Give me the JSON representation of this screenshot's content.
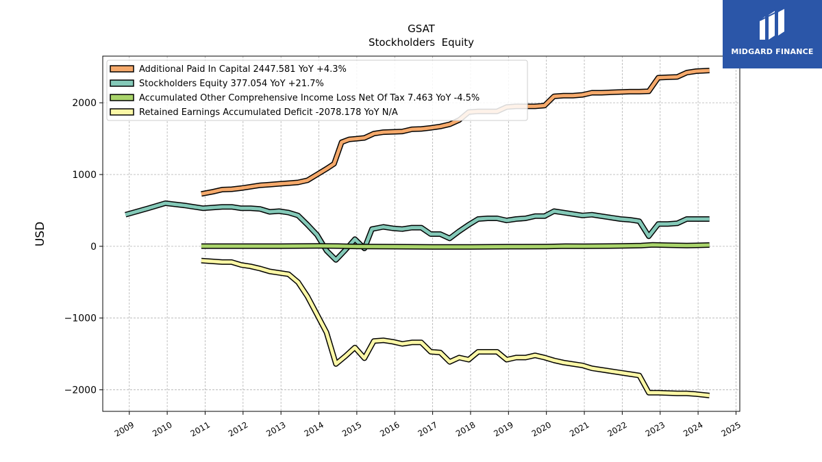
{
  "chart_data": {
    "type": "line",
    "title": "GSAT",
    "subtitle": "Stockholders  Equity",
    "ylabel": "USD",
    "xlabel": "",
    "xlim": [
      2008.3,
      2025.1
    ],
    "ylim": [
      -2300,
      2650
    ],
    "x_ticks": [
      2009,
      2010,
      2011,
      2012,
      2013,
      2014,
      2015,
      2016,
      2017,
      2018,
      2019,
      2020,
      2021,
      2022,
      2023,
      2024,
      2025
    ],
    "x_tick_labels": [
      "2009",
      "2010",
      "2011",
      "2012",
      "2013",
      "2014",
      "2015",
      "2016",
      "2017",
      "2018",
      "2019",
      "2020",
      "2021",
      "2022",
      "2023",
      "2024",
      "2025"
    ],
    "y_ticks": [
      -2000,
      -1000,
      0,
      1000,
      2000
    ],
    "y_tick_labels": [
      "−2000",
      "−1000",
      "0",
      "1000",
      "2000"
    ],
    "grid": true,
    "legend_position": "top-left",
    "series": [
      {
        "name": "Additional Paid In Capital",
        "legend": "Additional Paid In Capital  2447.581 YoY +4.3%",
        "color": "#f5a96b",
        "points": [
          [
            2010.9,
            730
          ],
          [
            2011.2,
            760
          ],
          [
            2011.45,
            790
          ],
          [
            2011.7,
            795
          ],
          [
            2011.95,
            810
          ],
          [
            2012.2,
            830
          ],
          [
            2012.45,
            850
          ],
          [
            2012.7,
            860
          ],
          [
            2012.95,
            870
          ],
          [
            2013.2,
            880
          ],
          [
            2013.45,
            890
          ],
          [
            2013.7,
            920
          ],
          [
            2013.95,
            1000
          ],
          [
            2014.2,
            1080
          ],
          [
            2014.4,
            1150
          ],
          [
            2014.6,
            1450
          ],
          [
            2014.8,
            1490
          ],
          [
            2015.0,
            1500
          ],
          [
            2015.2,
            1510
          ],
          [
            2015.45,
            1570
          ],
          [
            2015.7,
            1590
          ],
          [
            2015.95,
            1595
          ],
          [
            2016.2,
            1600
          ],
          [
            2016.45,
            1630
          ],
          [
            2016.7,
            1635
          ],
          [
            2016.95,
            1650
          ],
          [
            2017.2,
            1670
          ],
          [
            2017.45,
            1700
          ],
          [
            2017.7,
            1760
          ],
          [
            2017.95,
            1870
          ],
          [
            2018.2,
            1880
          ],
          [
            2018.45,
            1880
          ],
          [
            2018.7,
            1880
          ],
          [
            2018.95,
            1940
          ],
          [
            2019.2,
            1950
          ],
          [
            2019.45,
            1950
          ],
          [
            2019.7,
            1950
          ],
          [
            2019.95,
            1960
          ],
          [
            2020.2,
            2090
          ],
          [
            2020.45,
            2100
          ],
          [
            2020.7,
            2100
          ],
          [
            2020.95,
            2110
          ],
          [
            2021.2,
            2140
          ],
          [
            2021.45,
            2140
          ],
          [
            2021.7,
            2145
          ],
          [
            2021.95,
            2150
          ],
          [
            2022.2,
            2155
          ],
          [
            2022.45,
            2155
          ],
          [
            2022.7,
            2160
          ],
          [
            2022.95,
            2350
          ],
          [
            2023.2,
            2355
          ],
          [
            2023.45,
            2360
          ],
          [
            2023.7,
            2420
          ],
          [
            2023.95,
            2440
          ],
          [
            2024.3,
            2450
          ]
        ]
      },
      {
        "name": "Stockholders Equity",
        "legend": "Stockholders Equity  377.054 YoY +21.7%",
        "color": "#84c9b8",
        "points": [
          [
            2008.9,
            440
          ],
          [
            2009.5,
            530
          ],
          [
            2009.95,
            600
          ],
          [
            2010.45,
            570
          ],
          [
            2010.95,
            530
          ],
          [
            2011.45,
            550
          ],
          [
            2011.7,
            550
          ],
          [
            2011.95,
            530
          ],
          [
            2012.2,
            530
          ],
          [
            2012.45,
            520
          ],
          [
            2012.7,
            480
          ],
          [
            2012.95,
            490
          ],
          [
            2013.2,
            470
          ],
          [
            2013.45,
            430
          ],
          [
            2013.7,
            300
          ],
          [
            2013.95,
            160
          ],
          [
            2014.2,
            -60
          ],
          [
            2014.45,
            -190
          ],
          [
            2014.7,
            -50
          ],
          [
            2014.95,
            100
          ],
          [
            2015.2,
            -30
          ],
          [
            2015.4,
            240
          ],
          [
            2015.7,
            270
          ],
          [
            2015.95,
            250
          ],
          [
            2016.2,
            240
          ],
          [
            2016.45,
            260
          ],
          [
            2016.7,
            260
          ],
          [
            2016.95,
            170
          ],
          [
            2017.2,
            170
          ],
          [
            2017.45,
            110
          ],
          [
            2017.7,
            210
          ],
          [
            2017.95,
            300
          ],
          [
            2018.2,
            380
          ],
          [
            2018.45,
            390
          ],
          [
            2018.7,
            390
          ],
          [
            2018.95,
            360
          ],
          [
            2019.2,
            380
          ],
          [
            2019.45,
            390
          ],
          [
            2019.7,
            420
          ],
          [
            2019.95,
            420
          ],
          [
            2020.2,
            490
          ],
          [
            2020.45,
            470
          ],
          [
            2020.7,
            450
          ],
          [
            2020.95,
            430
          ],
          [
            2021.2,
            440
          ],
          [
            2021.45,
            420
          ],
          [
            2021.7,
            400
          ],
          [
            2021.95,
            380
          ],
          [
            2022.2,
            370
          ],
          [
            2022.45,
            350
          ],
          [
            2022.7,
            140
          ],
          [
            2022.95,
            310
          ],
          [
            2023.2,
            310
          ],
          [
            2023.45,
            320
          ],
          [
            2023.7,
            380
          ],
          [
            2023.95,
            380
          ],
          [
            2024.3,
            380
          ]
        ]
      },
      {
        "name": "Accumulated Other Comprehensive Income Loss Net Of Tax",
        "legend": "Accumulated Other Comprehensive Income Loss Net Of Tax  7.463 YoY -4.5%",
        "color": "#a9d46b",
        "points": [
          [
            2010.9,
            2
          ],
          [
            2012.0,
            2
          ],
          [
            2013.0,
            2
          ],
          [
            2014.0,
            5
          ],
          [
            2014.5,
            3
          ],
          [
            2015.0,
            -2
          ],
          [
            2016.0,
            -5
          ],
          [
            2017.0,
            -8
          ],
          [
            2018.0,
            -8
          ],
          [
            2019.0,
            -5
          ],
          [
            2020.0,
            -3
          ],
          [
            2020.5,
            2
          ],
          [
            2021.0,
            0
          ],
          [
            2022.0,
            5
          ],
          [
            2022.5,
            10
          ],
          [
            2022.8,
            20
          ],
          [
            2023.2,
            15
          ],
          [
            2023.7,
            10
          ],
          [
            2024.3,
            18
          ]
        ]
      },
      {
        "name": "Retained Earnings Accumulated Deficit",
        "legend": "Retained Earnings Accumulated Deficit  -2078.178 YoY N/A",
        "color": "#fbf7a6",
        "points": [
          [
            2010.9,
            -200
          ],
          [
            2011.45,
            -220
          ],
          [
            2011.7,
            -220
          ],
          [
            2011.95,
            -260
          ],
          [
            2012.2,
            -280
          ],
          [
            2012.45,
            -310
          ],
          [
            2012.7,
            -350
          ],
          [
            2012.95,
            -370
          ],
          [
            2013.2,
            -390
          ],
          [
            2013.45,
            -500
          ],
          [
            2013.7,
            -700
          ],
          [
            2013.95,
            -950
          ],
          [
            2014.2,
            -1200
          ],
          [
            2014.45,
            -1640
          ],
          [
            2014.7,
            -1530
          ],
          [
            2014.95,
            -1410
          ],
          [
            2015.2,
            -1560
          ],
          [
            2015.45,
            -1320
          ],
          [
            2015.7,
            -1310
          ],
          [
            2015.95,
            -1330
          ],
          [
            2016.2,
            -1360
          ],
          [
            2016.45,
            -1340
          ],
          [
            2016.7,
            -1340
          ],
          [
            2016.95,
            -1470
          ],
          [
            2017.2,
            -1480
          ],
          [
            2017.45,
            -1610
          ],
          [
            2017.7,
            -1550
          ],
          [
            2017.95,
            -1580
          ],
          [
            2018.2,
            -1470
          ],
          [
            2018.45,
            -1470
          ],
          [
            2018.7,
            -1470
          ],
          [
            2018.95,
            -1580
          ],
          [
            2019.2,
            -1550
          ],
          [
            2019.45,
            -1550
          ],
          [
            2019.7,
            -1520
          ],
          [
            2019.95,
            -1550
          ],
          [
            2020.2,
            -1590
          ],
          [
            2020.45,
            -1620
          ],
          [
            2020.7,
            -1640
          ],
          [
            2020.95,
            -1660
          ],
          [
            2021.2,
            -1700
          ],
          [
            2021.45,
            -1720
          ],
          [
            2021.7,
            -1740
          ],
          [
            2021.95,
            -1760
          ],
          [
            2022.2,
            -1780
          ],
          [
            2022.45,
            -1800
          ],
          [
            2022.7,
            -2040
          ],
          [
            2022.95,
            -2040
          ],
          [
            2023.45,
            -2050
          ],
          [
            2023.7,
            -2050
          ],
          [
            2023.95,
            -2060
          ],
          [
            2024.3,
            -2080
          ]
        ]
      }
    ]
  },
  "logo": {
    "text": "MIDGARD FINANCE"
  }
}
